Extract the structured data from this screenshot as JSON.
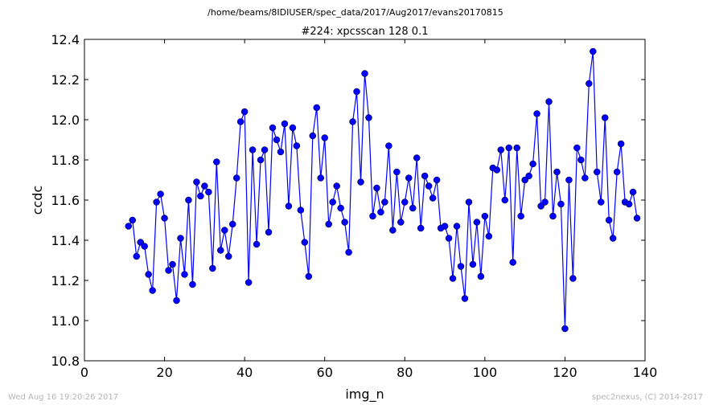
{
  "header": {
    "file_path": "/home/beams/8IDIUSER/spec_data/2017/Aug2017/evans20170815"
  },
  "footer": {
    "timestamp": "Wed Aug 16 19:20:26 2017",
    "credit": "spec2nexus, (C) 2014-2017"
  },
  "chart_data": {
    "type": "line",
    "title": "#224: xpcsscan 128 0.1",
    "xlabel": "img_n",
    "ylabel": "ccdc",
    "xlim": [
      0,
      140
    ],
    "ylim": [
      10.8,
      12.4
    ],
    "xticks": [
      0,
      20,
      40,
      60,
      80,
      100,
      120,
      140
    ],
    "xtick_labels": [
      "0",
      "20",
      "40",
      "60",
      "80",
      "100",
      "120",
      "140"
    ],
    "yticks": [
      10.8,
      11.0,
      11.2,
      11.4,
      11.6,
      11.8,
      12.0,
      12.2,
      12.4
    ],
    "ytick_labels": [
      "10.8",
      "11.0",
      "11.2",
      "11.4",
      "11.6",
      "11.8",
      "12.0",
      "12.2",
      "12.4"
    ],
    "grid": false,
    "series": [
      {
        "color": "#0000ff",
        "marker": "circle",
        "x": [
          11,
          12,
          13,
          14,
          15,
          16,
          17,
          18,
          19,
          20,
          21,
          22,
          23,
          24,
          25,
          26,
          27,
          28,
          29,
          30,
          31,
          32,
          33,
          34,
          35,
          36,
          37,
          38,
          39,
          40,
          41,
          42,
          43,
          44,
          45,
          46,
          47,
          48,
          49,
          50,
          51,
          52,
          53,
          54,
          55,
          56,
          57,
          58,
          59,
          60,
          61,
          62,
          63,
          64,
          65,
          66,
          67,
          68,
          69,
          70,
          71,
          72,
          73,
          74,
          75,
          76,
          77,
          78,
          79,
          80,
          81,
          82,
          83,
          84,
          85,
          86,
          87,
          88,
          89,
          90,
          91,
          92,
          93,
          94,
          95,
          96,
          97,
          98,
          99,
          100,
          101,
          102,
          103,
          104,
          105,
          106,
          107,
          108,
          109,
          110,
          111,
          112,
          113,
          114,
          115,
          116,
          117,
          118,
          119,
          120,
          121,
          122,
          123,
          124,
          125,
          126,
          127,
          128,
          129,
          130,
          131,
          132,
          133,
          134,
          135,
          136,
          137,
          138
        ],
        "y": [
          11.47,
          11.5,
          11.32,
          11.39,
          11.37,
          11.23,
          11.15,
          11.59,
          11.63,
          11.51,
          11.25,
          11.28,
          11.1,
          11.41,
          11.23,
          11.6,
          11.18,
          11.69,
          11.62,
          11.67,
          11.64,
          11.26,
          11.79,
          11.35,
          11.45,
          11.32,
          11.48,
          11.71,
          11.99,
          12.04,
          11.19,
          11.85,
          11.38,
          11.8,
          11.85,
          11.44,
          11.96,
          11.9,
          11.84,
          11.98,
          11.57,
          11.96,
          11.87,
          11.55,
          11.39,
          11.22,
          11.92,
          12.06,
          11.71,
          11.91,
          11.48,
          11.59,
          11.67,
          11.56,
          11.49,
          11.34,
          11.99,
          12.14,
          11.69,
          12.23,
          12.01,
          11.52,
          11.66,
          11.54,
          11.59,
          11.87,
          11.45,
          11.74,
          11.49,
          11.59,
          11.71,
          11.56,
          11.81,
          11.46,
          11.72,
          11.67,
          11.61,
          11.7,
          11.46,
          11.47,
          11.41,
          11.21,
          11.47,
          11.27,
          11.11,
          11.59,
          11.28,
          11.49,
          11.22,
          11.52,
          11.42,
          11.76,
          11.75,
          11.85,
          11.6,
          11.86,
          11.29,
          11.86,
          11.52,
          11.7,
          11.72,
          11.78,
          12.03,
          11.57,
          11.59,
          12.09,
          11.52,
          11.74,
          11.58,
          10.96,
          11.7,
          11.21,
          11.86,
          11.8,
          11.71,
          12.18,
          12.34,
          11.74,
          11.59,
          12.01,
          11.5,
          11.41,
          11.74,
          11.88,
          11.59,
          11.58,
          11.64,
          11.51
        ]
      }
    ]
  }
}
